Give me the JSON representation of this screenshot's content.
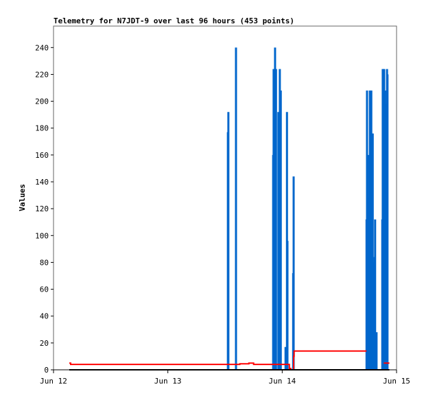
{
  "chart_data": {
    "type": "bar",
    "title": "Telemetry for N7JDT-9 over last 96 hours (453 points)",
    "xlabel": "",
    "ylabel": "Values",
    "ylim": [
      0,
      256
    ],
    "yticks": [
      0,
      20,
      40,
      60,
      80,
      100,
      120,
      140,
      160,
      180,
      200,
      220,
      240
    ],
    "xlim": [
      "Jun 12 00:00",
      "Jun 15 00:00"
    ],
    "xticks": [
      {
        "label": "Jun 12",
        "t": "Jun 12 00:00"
      },
      {
        "label": "Jun 13",
        "t": "Jun 13 00:00"
      },
      {
        "label": "Jun 14",
        "t": "Jun 14 00:00"
      },
      {
        "label": "Jun 15",
        "t": "Jun 15 00:00"
      }
    ],
    "grid": false,
    "series": [
      {
        "kind": "bars",
        "color": "#0066cc",
        "points": [
          [
            "Jun 13 12:36",
            177
          ],
          [
            "Jun 13 12:42",
            192
          ],
          [
            "Jun 13 14:18",
            240
          ],
          [
            "Jun 13 22:06",
            160
          ],
          [
            "Jun 13 22:12",
            224
          ],
          [
            "Jun 13 22:30",
            240
          ],
          [
            "Jun 13 22:42",
            224
          ],
          [
            "Jun 13 23:12",
            192
          ],
          [
            "Jun 13 23:24",
            160
          ],
          [
            "Jun 13 23:30",
            224
          ],
          [
            "Jun 13 23:42",
            208
          ],
          [
            "Jun 14 00:42",
            17
          ],
          [
            "Jun 14 01:00",
            192
          ],
          [
            "Jun 14 01:06",
            96
          ],
          [
            "Jun 14 02:18",
            72
          ],
          [
            "Jun 14 02:24",
            144
          ],
          [
            "Jun 14 17:42",
            112
          ],
          [
            "Jun 14 17:48",
            208
          ],
          [
            "Jun 14 18:00",
            128
          ],
          [
            "Jun 14 18:12",
            160
          ],
          [
            "Jun 14 18:24",
            208
          ],
          [
            "Jun 14 18:42",
            208
          ],
          [
            "Jun 14 18:48",
            176
          ],
          [
            "Jun 14 19:00",
            176
          ],
          [
            "Jun 14 19:18",
            80
          ],
          [
            "Jun 14 19:24",
            84
          ],
          [
            "Jun 14 19:30",
            112
          ],
          [
            "Jun 14 19:48",
            28
          ],
          [
            "Jun 14 21:00",
            112
          ],
          [
            "Jun 14 21:06",
            224
          ],
          [
            "Jun 14 21:24",
            224
          ],
          [
            "Jun 14 21:36",
            208
          ],
          [
            "Jun 14 21:48",
            198
          ],
          [
            "Jun 14 22:00",
            224
          ],
          [
            "Jun 14 22:06",
            220
          ]
        ]
      },
      {
        "kind": "step",
        "color": "#ff0000",
        "segments": [
          [
            [
              "Jun 12 03:18",
              5
            ],
            [
              "Jun 12 03:36",
              4
            ],
            [
              "Jun 13 15:06",
              4.5
            ],
            [
              "Jun 13 17:00",
              5
            ],
            [
              "Jun 13 18:00",
              4
            ],
            [
              "Jun 14 00:48",
              4
            ],
            [
              "Jun 14 01:30",
              1
            ],
            [
              "Jun 14 01:48",
              0
            ],
            [
              "Jun 14 02:24",
              10
            ],
            [
              "Jun 14 02:30",
              14
            ],
            [
              "Jun 14 17:42",
              14
            ]
          ],
          [
            [
              "Jun 14 21:18",
              5
            ],
            [
              "Jun 14 22:30",
              5
            ]
          ]
        ]
      },
      {
        "kind": "line",
        "color": "#000000",
        "segments": [
          [
            [
              "Jun 12 03:18",
              0
            ],
            [
              "Jun 14 22:30",
              0
            ]
          ]
        ]
      }
    ]
  }
}
